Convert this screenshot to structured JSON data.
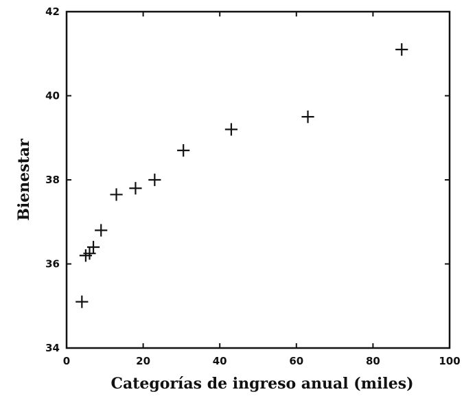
{
  "chart_data": {
    "type": "scatter",
    "title": "",
    "xlabel": "Categorías de ingreso anual (miles)",
    "ylabel": "Bienestar",
    "xlim": [
      0,
      100
    ],
    "ylim": [
      34,
      42
    ],
    "xticks": [
      0,
      20,
      40,
      60,
      80,
      100
    ],
    "yticks": [
      34,
      36,
      38,
      40,
      42
    ],
    "marker": "plus",
    "grid": false,
    "legend": "none",
    "color": "#111111",
    "points": [
      {
        "x": 4,
        "y": 35.1
      },
      {
        "x": 5,
        "y": 36.2
      },
      {
        "x": 6,
        "y": 36.25
      },
      {
        "x": 7,
        "y": 36.4
      },
      {
        "x": 9,
        "y": 36.8
      },
      {
        "x": 13,
        "y": 37.65
      },
      {
        "x": 18,
        "y": 37.8
      },
      {
        "x": 23,
        "y": 38.0
      },
      {
        "x": 30.5,
        "y": 38.7
      },
      {
        "x": 43,
        "y": 39.2
      },
      {
        "x": 63,
        "y": 39.5
      },
      {
        "x": 87.5,
        "y": 41.1
      }
    ]
  }
}
